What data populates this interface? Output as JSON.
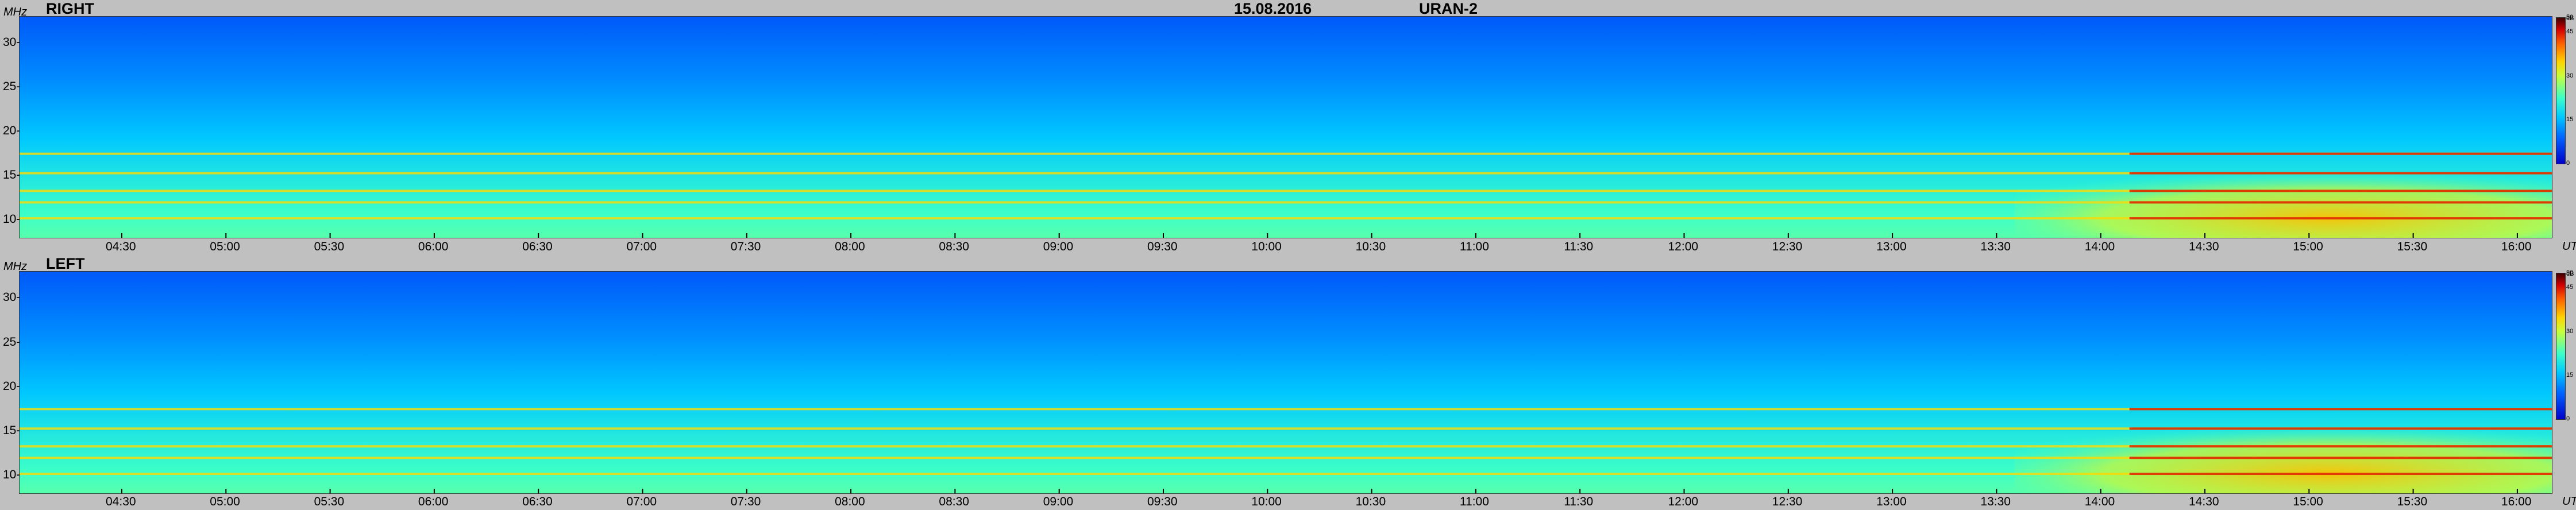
{
  "header": {
    "date": "15.08.2016",
    "instrument": "URAN-2"
  },
  "panels": [
    {
      "polarization": "RIGHT"
    },
    {
      "polarization": "LEFT"
    }
  ],
  "axes": {
    "y_unit": "MHz",
    "x_unit": "UT",
    "colorbar_unit": "dB",
    "colorbar_ticks": [
      "50",
      "45",
      "30",
      "15",
      "0"
    ]
  },
  "chart_data": [
    {
      "type": "heatmap",
      "title": "15.08.2016 URAN-2 RIGHT",
      "xlabel": "UT",
      "ylabel": "MHz",
      "x_ticks": [
        "04:30",
        "05:00",
        "05:30",
        "06:00",
        "06:30",
        "07:00",
        "07:30",
        "08:00",
        "08:30",
        "09:00",
        "09:30",
        "10:00",
        "10:30",
        "11:00",
        "11:30",
        "12:00",
        "12:30",
        "13:00",
        "13:30",
        "14:00",
        "14:30",
        "15:00",
        "15:30",
        "16:00"
      ],
      "y_ticks": [
        10,
        15,
        20,
        25,
        30
      ],
      "ylim": [
        8,
        33
      ],
      "colorbar_range": [
        0,
        50
      ],
      "features": {
        "interference_bands_mhz": [
          10.2,
          12.0,
          13.3,
          15.3,
          17.5
        ],
        "burst_time": "14:00-16:00",
        "burst_freq_mhz": [
          8,
          17
        ]
      }
    },
    {
      "type": "heatmap",
      "title": "15.08.2016 URAN-2 LEFT",
      "xlabel": "UT",
      "ylabel": "MHz",
      "x_ticks": [
        "04:30",
        "05:00",
        "05:30",
        "06:00",
        "06:30",
        "07:00",
        "07:30",
        "08:00",
        "08:30",
        "09:00",
        "09:30",
        "10:00",
        "10:30",
        "11:00",
        "11:30",
        "12:00",
        "12:30",
        "13:00",
        "13:30",
        "14:00",
        "14:30",
        "15:00",
        "15:30",
        "16:00"
      ],
      "y_ticks": [
        10,
        15,
        20,
        25,
        30
      ],
      "ylim": [
        8,
        33
      ],
      "colorbar_range": [
        0,
        50
      ],
      "features": {
        "interference_bands_mhz": [
          10.2,
          12.0,
          13.3,
          15.3,
          17.5
        ],
        "burst_time": "14:00-16:00",
        "burst_freq_mhz": [
          8,
          17
        ]
      }
    }
  ]
}
